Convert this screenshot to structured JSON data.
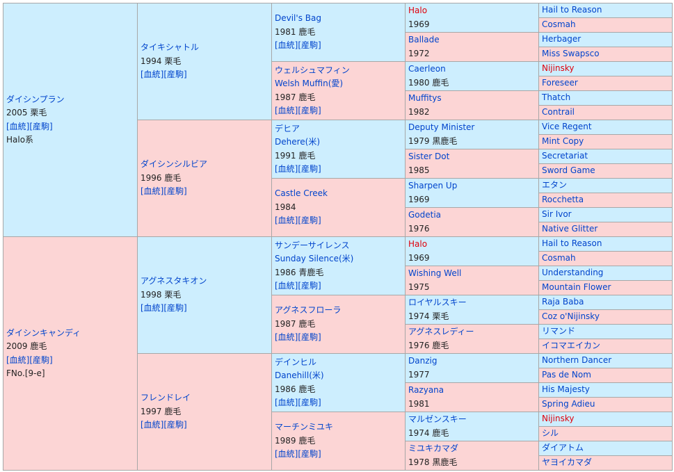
{
  "sire": {
    "name": "ダイシンプラン",
    "year": "2005 栗毛",
    "links": "[血統][産駒]",
    "line": "Halo系"
  },
  "dam": {
    "name": "ダイシンキャンディ",
    "year": "2009 鹿毛",
    "links": "[血統][産駒]",
    "line": "FNo.[9-e]"
  },
  "g2": [
    {
      "name": "タイキシャトル",
      "year": "1994 栗毛",
      "links": "[血統][産駒]"
    },
    {
      "name": "ダイシンシルビア",
      "year": "1996 鹿毛",
      "links": "[血統][産駒]"
    },
    {
      "name": "アグネスタキオン",
      "year": "1998 栗毛",
      "links": "[血統][産駒]"
    },
    {
      "name": "フレンドレイ",
      "year": "1997 鹿毛",
      "links": "[血統][産駒]"
    }
  ],
  "g3": [
    {
      "name": "Devil's Bag",
      "alt": "",
      "year": "1981 鹿毛",
      "links": "[血統][産駒]"
    },
    {
      "name": "ウェルシュマフィン",
      "alt": "Welsh Muffin(愛)",
      "year": "1987 鹿毛",
      "links": "[血統][産駒]"
    },
    {
      "name": "デヒア",
      "alt": "Dehere(米)",
      "year": "1991 鹿毛",
      "links": "[血統][産駒]"
    },
    {
      "name": "Castle Creek",
      "alt": "",
      "year": "1984",
      "links": "[血統][産駒]"
    },
    {
      "name": "サンデーサイレンス",
      "alt": "Sunday Silence(米)",
      "year": "1986 青鹿毛",
      "links": "[血統][産駒]"
    },
    {
      "name": "アグネスフローラ",
      "alt": "",
      "year": "1987 鹿毛",
      "links": "[血統][産駒]"
    },
    {
      "name": "デインヒル",
      "alt": "Danehill(米)",
      "year": "1986 鹿毛",
      "links": "[血統][産駒]"
    },
    {
      "name": "マーチンミユキ",
      "alt": "",
      "year": "1989 鹿毛",
      "links": "[血統][産駒]"
    }
  ],
  "g4": [
    {
      "name": "Halo",
      "year": "1969"
    },
    {
      "name": "Ballade",
      "year": "1972"
    },
    {
      "name": "Caerleon",
      "year": "1980 鹿毛"
    },
    {
      "name": "Muffitys",
      "year": "1982"
    },
    {
      "name": "Deputy Minister",
      "year": "1979 黒鹿毛"
    },
    {
      "name": "Sister Dot",
      "year": "1985"
    },
    {
      "name": "Sharpen Up",
      "year": "1969"
    },
    {
      "name": "Godetia",
      "year": "1976"
    },
    {
      "name": "Halo",
      "year": "1969"
    },
    {
      "name": "Wishing Well",
      "year": "1975"
    },
    {
      "name": "ロイヤルスキー",
      "year": "1974 栗毛"
    },
    {
      "name": "アグネスレディー",
      "year": "1976 鹿毛"
    },
    {
      "name": "Danzig",
      "year": "1977"
    },
    {
      "name": "Razyana",
      "year": "1981"
    },
    {
      "name": "マルゼンスキー",
      "year": "1974 鹿毛"
    },
    {
      "name": "ミユキカマダ",
      "year": "1978 黒鹿毛"
    }
  ],
  "g5": [
    "Hail to Reason",
    "Cosmah",
    "Herbager",
    "Miss Swapsco",
    "Nijinsky",
    "Foreseer",
    "Thatch",
    "Contrail",
    "Vice Regent",
    "Mint Copy",
    "Secretariat",
    "Sword Game",
    "エタン",
    "Rocchetta",
    "Sir Ivor",
    "Native Glitter",
    "Hail to Reason",
    "Cosmah",
    "Understanding",
    "Mountain Flower",
    "Raja Baba",
    "Coz o'Nijinsky",
    "リマンド",
    "イコマエイカン",
    "Northern Dancer",
    "Pas de Nom",
    "His Majesty",
    "Spring Adieu",
    "Nijinsky",
    "シル",
    "ダイアトム",
    "ヤヨイカマダ"
  ],
  "colors": {
    "male": "#cdeefe",
    "female": "#fcd5d5",
    "link": "#0044cc",
    "highlight": "#e0000a"
  }
}
